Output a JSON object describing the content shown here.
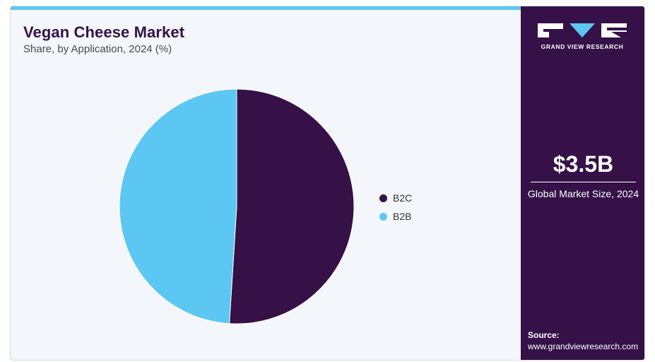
{
  "header": {
    "title": "Vegan Cheese Market",
    "subtitle": "Share, by Application, 2024 (%)"
  },
  "chart_data": {
    "type": "pie",
    "title": "Vegan Cheese Market",
    "subtitle": "Share, by Application, 2024 (%)",
    "categories": [
      "B2C",
      "B2B"
    ],
    "values": [
      51,
      49
    ],
    "colors": [
      "#351148",
      "#5bc7f2"
    ],
    "legend_position": "right"
  },
  "sidebar": {
    "brand": "GRAND VIEW RESEARCH",
    "market_size": "$3.5B",
    "market_size_label": "Global Market Size, 2024",
    "source_label": "Source:",
    "source_url": "www.grandviewresearch.com"
  },
  "colors": {
    "accent_dark": "#351148",
    "accent_light": "#5bc7f2",
    "background": "#f3f7fb"
  }
}
